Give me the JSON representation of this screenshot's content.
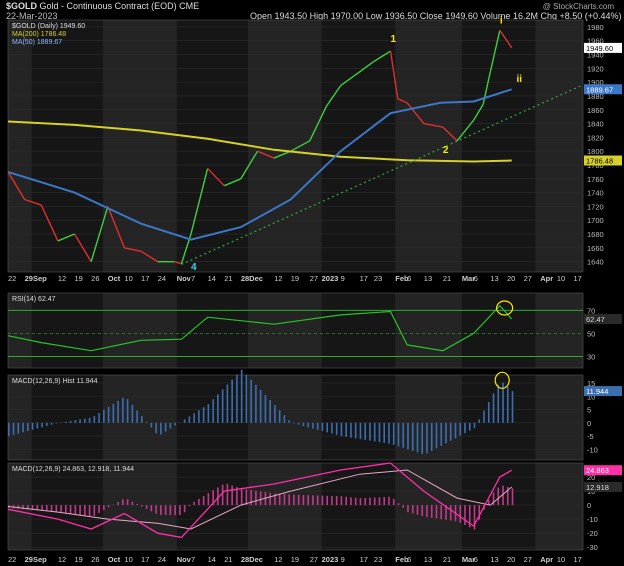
{
  "header": {
    "symbol": "$GOLD",
    "name": "Gold - Continuous Contract (EOD)",
    "exchange": "CME",
    "date": "22-Mar-2023",
    "watermark": "@ StockCharts.com",
    "open_label": "Open",
    "open": "1943.50",
    "high_label": "High",
    "high": "1970.00",
    "low_label": "Low",
    "low": "1936.50",
    "close_label": "Close",
    "close": "1949.60",
    "volume_label": "Volume",
    "volume": "16.2M",
    "chg_label": "Chg",
    "chg": "+8.50 (+0.44%)"
  },
  "colors": {
    "up": "#3fcf3f",
    "down": "#e03030",
    "ma200": "#d6d028",
    "ma50": "#3b78c8",
    "trendline": "#2fa84a",
    "wave_label": "#ffe800",
    "wave4": "#33d6e6",
    "rsi": "#27c427",
    "macd_hist": "#3c6fb0",
    "macd_line": "#ff2fa8",
    "pink_fill": "#c23a8a",
    "ellipse": "#ffe800"
  },
  "chart_data": [
    {
      "type": "line",
      "title": "$GOLD (Daily) 1949.60",
      "series": [
        {
          "name": "$GOLD (Daily) 1949.60",
          "dates": [
            "2022-08-22",
            "2022-08-29",
            "2022-09-05",
            "2022-09-12",
            "2022-09-19",
            "2022-09-26",
            "2022-10-03",
            "2022-10-10",
            "2022-10-17",
            "2022-10-24",
            "2022-10-31",
            "2022-11-03",
            "2022-11-07",
            "2022-11-14",
            "2022-11-21",
            "2022-11-28",
            "2022-12-05",
            "2022-12-12",
            "2022-12-19",
            "2022-12-27",
            "2023-01-03",
            "2023-01-09",
            "2023-01-17",
            "2023-01-23",
            "2023-01-30",
            "2023-02-02",
            "2023-02-06",
            "2023-02-13",
            "2023-02-21",
            "2023-02-27",
            "2023-03-06",
            "2023-03-10",
            "2023-03-13",
            "2023-03-17",
            "2023-03-20",
            "2023-03-22"
          ],
          "values": [
            1770,
            1730,
            1722,
            1670,
            1680,
            1640,
            1720,
            1660,
            1655,
            1640,
            1640,
            1637,
            1680,
            1775,
            1750,
            1760,
            1800,
            1790,
            1800,
            1815,
            1865,
            1895,
            1915,
            1930,
            1945,
            1876,
            1870,
            1840,
            1835,
            1815,
            1845,
            1868,
            1915,
            1975,
            1960,
            1949.6
          ]
        },
        {
          "name": "MA(200) 1786.48",
          "dates": [
            "2022-08-22",
            "2022-09-19",
            "2022-10-17",
            "2022-11-14",
            "2022-12-12",
            "2023-01-09",
            "2023-02-06",
            "2023-03-06",
            "2023-03-22"
          ],
          "values": [
            1843,
            1838,
            1830,
            1818,
            1802,
            1792,
            1787,
            1785,
            1786.48
          ]
        },
        {
          "name": "MA(50) 1889.67",
          "dates": [
            "2022-08-22",
            "2022-09-19",
            "2022-10-17",
            "2022-11-07",
            "2022-11-28",
            "2022-12-19",
            "2023-01-09",
            "2023-01-30",
            "2023-02-20",
            "2023-03-06",
            "2023-03-22"
          ],
          "values": [
            1770,
            1740,
            1695,
            1672,
            1690,
            1730,
            1800,
            1855,
            1870,
            1872,
            1889.67
          ]
        }
      ],
      "y_ticks": [
        1640,
        1660,
        1680,
        1700,
        1720,
        1740,
        1760,
        1780,
        1800,
        1820,
        1840,
        1860,
        1880,
        1900,
        1920,
        1940,
        1960,
        1980
      ],
      "ylim": [
        1625,
        1990
      ],
      "last_value_labels": [
        "1949.60",
        "1889.67",
        "1786.48"
      ],
      "wave_labels": [
        "1",
        "2",
        "4",
        "i",
        "ii"
      ],
      "x_tick_labels": [
        "22",
        "29Sep",
        "12",
        "19",
        "26",
        "Oct",
        "10",
        "17",
        "24",
        "Nov",
        "7",
        "14",
        "21",
        "28Dec",
        "12",
        "19",
        "27",
        "2023",
        "9",
        "17",
        "23",
        "Feb",
        "6",
        "13",
        "21",
        "Mar",
        "6",
        "13",
        "20",
        "27",
        "Apr",
        "10",
        "17"
      ]
    },
    {
      "type": "line",
      "title": "RSI(14) 62.47",
      "series": [
        {
          "name": "RSI(14) 62.47",
          "dates": [
            "2022-08-22",
            "2022-09-05",
            "2022-09-26",
            "2022-10-17",
            "2022-11-03",
            "2022-11-14",
            "2022-12-12",
            "2023-01-09",
            "2023-01-30",
            "2023-02-06",
            "2023-02-21",
            "2023-03-06",
            "2023-03-17",
            "2023-03-22"
          ],
          "values": [
            48,
            42,
            35,
            44,
            45,
            64,
            58,
            66,
            69,
            40,
            35,
            50,
            74,
            62.47
          ]
        }
      ],
      "y_ticks": [
        30,
        50,
        70
      ],
      "ylim": [
        20,
        85
      ],
      "last_value_label": "62.47"
    },
    {
      "type": "bar",
      "title": "MACD(12,26,9) Hist 11.944",
      "series": [
        {
          "name": "MACD(12,26,9) Hist 11.944",
          "dates": [
            "2022-08-22",
            "2022-09-12",
            "2022-09-26",
            "2022-10-10",
            "2022-10-24",
            "2022-11-14",
            "2022-11-28",
            "2022-12-19",
            "2023-01-09",
            "2023-01-30",
            "2023-02-13",
            "2023-03-06",
            "2023-03-17",
            "2023-03-22"
          ],
          "values": [
            -5,
            0,
            2,
            10,
            -5,
            7,
            20,
            0,
            -5,
            -8,
            -12,
            -2,
            16,
            11.944
          ]
        }
      ],
      "y_ticks": [
        -10,
        -5,
        0,
        5,
        10,
        15
      ],
      "ylim": [
        -14,
        18
      ],
      "last_value_label": "11.944"
    },
    {
      "type": "line",
      "title": "MACD(12,26,9) 24.863, 12.918, 11.944",
      "series": [
        {
          "name": "MACD 24.863",
          "dates": [
            "2022-08-22",
            "2022-09-12",
            "2022-09-26",
            "2022-10-10",
            "2022-10-24",
            "2022-11-03",
            "2022-11-21",
            "2022-12-12",
            "2023-01-09",
            "2023-01-30",
            "2023-02-13",
            "2023-03-06",
            "2023-03-17",
            "2023-03-22"
          ],
          "values": [
            -3,
            -10,
            -17,
            -6,
            -20,
            -23,
            10,
            15,
            25,
            30,
            10,
            -15,
            20,
            24.863
          ]
        },
        {
          "name": "Signal 12.918",
          "dates": [
            "2022-08-22",
            "2022-09-12",
            "2022-10-03",
            "2022-10-24",
            "2022-11-07",
            "2022-11-28",
            "2022-12-19",
            "2023-01-17",
            "2023-02-06",
            "2023-02-27",
            "2023-03-13",
            "2023-03-22"
          ],
          "values": [
            -1,
            -5,
            -10,
            -13,
            -17,
            0,
            10,
            22,
            25,
            5,
            0,
            12.918
          ]
        }
      ],
      "y_ticks": [
        -30,
        -20,
        -10,
        0,
        10,
        20
      ],
      "ylim": [
        -32,
        30
      ],
      "last_value_labels": [
        "24.863",
        "12.918"
      ]
    }
  ]
}
